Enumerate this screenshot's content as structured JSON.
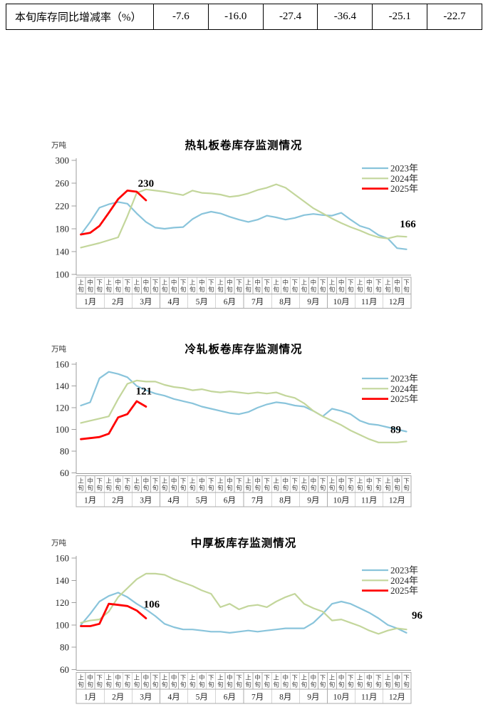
{
  "table": {
    "row_label": "本旬库存同比增减率（%）",
    "values": [
      "-7.6",
      "-16.0",
      "-27.4",
      "-36.4",
      "-25.1",
      "-22.7"
    ]
  },
  "x_axis": {
    "months": [
      "1月",
      "2月",
      "3月",
      "4月",
      "5月",
      "6月",
      "7月",
      "8月",
      "9月",
      "10月",
      "11月",
      "12月"
    ],
    "periods": [
      "上旬",
      "中旬",
      "下旬"
    ]
  },
  "chart_data": [
    {
      "type": "line",
      "title": "热轧板卷库存监测情况",
      "ylabel": "万吨",
      "ylim": [
        100,
        300
      ],
      "ytick_interval": 40,
      "grid": false,
      "legend_position": "top-right",
      "series": [
        {
          "name": "2023年",
          "color": "#89C4DB",
          "values": [
            170,
            192,
            217,
            223,
            227,
            224,
            207,
            192,
            182,
            180,
            182,
            183,
            197,
            206,
            210,
            207,
            201,
            196,
            192,
            196,
            203,
            200,
            196,
            199,
            204,
            206,
            204,
            203,
            208,
            196,
            185,
            180,
            169,
            163,
            146,
            144
          ]
        },
        {
          "name": "2024年",
          "color": "#C3D69B",
          "values": [
            147,
            151,
            155,
            160,
            165,
            202,
            243,
            249,
            247,
            245,
            242,
            239,
            247,
            243,
            242,
            240,
            236,
            238,
            242,
            248,
            252,
            258,
            252,
            240,
            228,
            216,
            207,
            198,
            190,
            183,
            177,
            170,
            165,
            163,
            167,
            166
          ]
        },
        {
          "name": "2025年",
          "color": "#FF0000",
          "values": [
            170,
            173,
            185,
            208,
            232,
            247,
            245,
            230
          ]
        }
      ],
      "annotations": [
        {
          "text": "230",
          "series": "2025年",
          "index": 7,
          "value": 230
        },
        {
          "text": "166",
          "series": "2024年",
          "index": 35,
          "value": 166
        }
      ]
    },
    {
      "type": "line",
      "title": "冷轧板卷库存监测情况",
      "ylabel": "万吨",
      "ylim": [
        60,
        160
      ],
      "ytick_interval": 20,
      "grid": false,
      "legend_position": "top-right",
      "series": [
        {
          "name": "2023年",
          "color": "#89C4DB",
          "values": [
            122,
            125,
            147,
            153,
            151,
            148,
            140,
            136,
            133,
            131,
            128,
            126,
            124,
            121,
            119,
            117,
            115,
            114,
            116,
            120,
            123,
            125,
            124,
            122,
            121,
            117,
            112,
            119,
            117,
            114,
            108,
            105,
            104,
            102,
            100,
            98
          ]
        },
        {
          "name": "2024年",
          "color": "#C3D69B",
          "values": [
            106,
            108,
            110,
            112,
            128,
            142,
            145,
            144,
            144,
            141,
            139,
            138,
            136,
            137,
            135,
            134,
            135,
            134,
            133,
            134,
            133,
            134,
            131,
            129,
            124,
            117,
            112,
            108,
            104,
            99,
            95,
            91,
            88,
            88,
            88,
            89
          ]
        },
        {
          "name": "2025年",
          "color": "#FF0000",
          "values": [
            91,
            92,
            93,
            96,
            111,
            114,
            126,
            121
          ]
        }
      ],
      "annotations": [
        {
          "text": "121",
          "series": "2025年",
          "index": 7,
          "value": 121
        },
        {
          "text": "89",
          "series": "2024年",
          "index": 35,
          "value": 89
        }
      ]
    },
    {
      "type": "line",
      "title": "中厚板库存监测情况",
      "ylabel": "万吨",
      "ylim": [
        60,
        160
      ],
      "ytick_interval": 20,
      "grid": false,
      "legend_position": "top-right",
      "series": [
        {
          "name": "2023年",
          "color": "#89C4DB",
          "values": [
            100,
            110,
            121,
            126,
            129,
            125,
            119,
            114,
            108,
            101,
            98,
            96,
            96,
            95,
            94,
            94,
            93,
            94,
            95,
            94,
            95,
            96,
            97,
            97,
            97,
            102,
            110,
            119,
            121,
            119,
            115,
            111,
            106,
            100,
            97,
            93
          ]
        },
        {
          "name": "2024年",
          "color": "#C3D69B",
          "values": [
            102,
            104,
            105,
            112,
            125,
            133,
            141,
            146,
            146,
            145,
            141,
            138,
            135,
            131,
            128,
            116,
            119,
            114,
            117,
            118,
            116,
            121,
            125,
            128,
            119,
            115,
            112,
            104,
            105,
            102,
            99,
            95,
            92,
            95,
            97,
            96
          ]
        },
        {
          "name": "2025年",
          "color": "#FF0000",
          "values": [
            99,
            99,
            101,
            119,
            118,
            117,
            113,
            106
          ]
        }
      ],
      "annotations": [
        {
          "text": "106",
          "series": "2025年",
          "index": 7,
          "value": 106
        },
        {
          "text": "96",
          "series": "2024年",
          "index": 35,
          "value": 96
        }
      ]
    }
  ]
}
